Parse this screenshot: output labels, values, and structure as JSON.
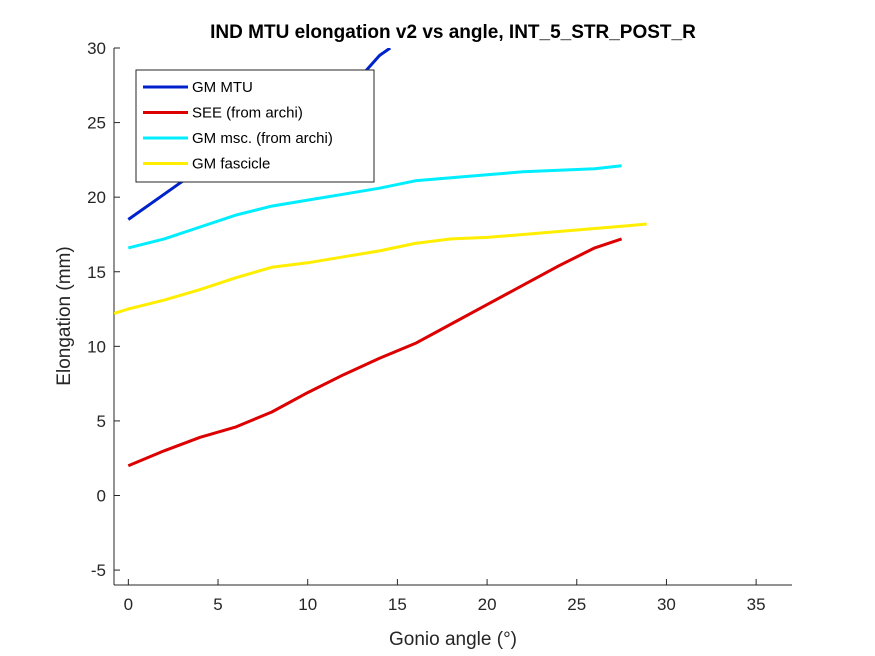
{
  "chart_data": {
    "type": "line",
    "title": "IND MTU elongation v2 vs angle, INT_5_STR_POST_R",
    "xlabel": "Gonio angle (°)",
    "ylabel": "Elongation (mm)",
    "xlim": [
      -0.8,
      37
    ],
    "ylim": [
      -6,
      30
    ],
    "xticks": [
      0,
      5,
      10,
      15,
      20,
      25,
      30,
      35
    ],
    "yticks": [
      -5,
      0,
      5,
      10,
      15,
      20,
      25,
      30
    ],
    "xtick_labels": [
      "0",
      "5",
      "10",
      "15",
      "20",
      "25",
      "30",
      "35"
    ],
    "ytick_labels": [
      "-5",
      "0",
      "5",
      "10",
      "15",
      "20",
      "25",
      "30"
    ],
    "grid": false,
    "legend_position": "top-left",
    "series": [
      {
        "name": "GM MTU",
        "color": "#0022cc",
        "x": [
          0,
          2,
          4,
          6,
          8,
          10,
          12,
          14,
          14.6
        ],
        "y": [
          18.5,
          20.2,
          21.9,
          23.1,
          24.4,
          25.6,
          26.8,
          29.5,
          30
        ]
      },
      {
        "name": "SEE (from archi)",
        "color": "#dd0000",
        "x": [
          0,
          2,
          4,
          6,
          8,
          10,
          12,
          14,
          16,
          18,
          20,
          22,
          24,
          26,
          27.5
        ],
        "y": [
          2.0,
          3.0,
          3.9,
          4.6,
          5.6,
          6.9,
          8.1,
          9.2,
          10.2,
          11.5,
          12.8,
          14.1,
          15.4,
          16.6,
          17.2
        ]
      },
      {
        "name": "GM msc. (from archi)",
        "color": "#00eeff",
        "x": [
          0,
          2,
          4,
          6,
          8,
          10,
          12,
          14,
          16,
          18,
          20,
          22,
          24,
          26,
          27.5
        ],
        "y": [
          16.6,
          17.2,
          18.0,
          18.8,
          19.4,
          19.8,
          20.2,
          20.6,
          21.1,
          21.3,
          21.5,
          21.7,
          21.8,
          21.9,
          22.1
        ]
      },
      {
        "name": "GM fascicle",
        "color": "#ffee00",
        "x": [
          -0.8,
          0,
          2,
          4,
          6,
          8,
          10,
          12,
          14,
          16,
          18,
          20,
          22,
          24,
          26,
          28,
          28.9
        ],
        "y": [
          12.2,
          12.5,
          13.1,
          13.8,
          14.6,
          15.3,
          15.6,
          16.0,
          16.4,
          16.9,
          17.2,
          17.3,
          17.5,
          17.7,
          17.9,
          18.1,
          18.2
        ]
      }
    ]
  }
}
